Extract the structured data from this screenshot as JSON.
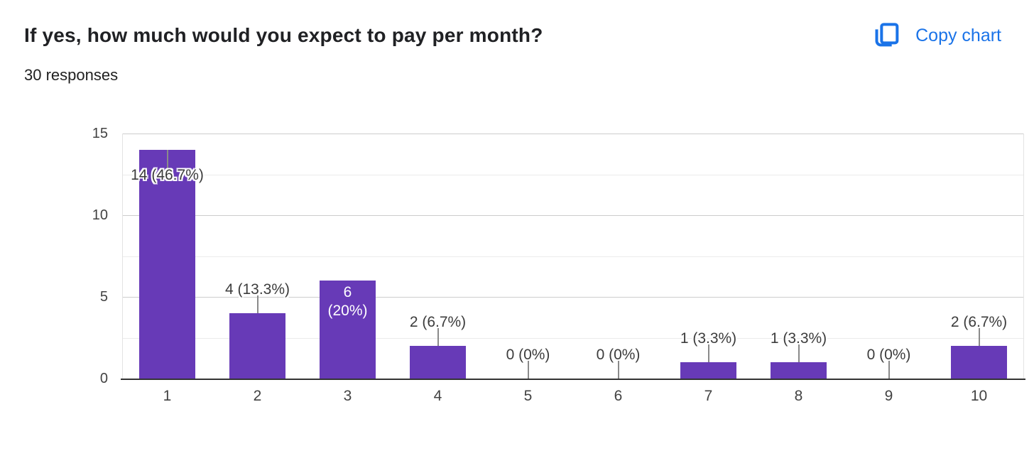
{
  "header": {
    "title": "If yes, how much would you expect to pay per month?",
    "responses_count": "30 responses",
    "copy_chart_label": "Copy chart"
  },
  "chart_data": {
    "type": "bar",
    "title": "If yes, how much would you expect to pay per month?",
    "subtitle": "30 responses",
    "total_responses": 30,
    "categories": [
      "1",
      "2",
      "3",
      "4",
      "5",
      "6",
      "7",
      "8",
      "9",
      "10"
    ],
    "values": [
      14,
      4,
      6,
      2,
      0,
      0,
      1,
      1,
      0,
      2
    ],
    "bar_labels": [
      "14 (46.7%)",
      "4 (13.3%)",
      "6 (20%)",
      "2 (6.7%)",
      "0 (0%)",
      "0 (0%)",
      "1 (3.3%)",
      "1 (3.3%)",
      "0 (0%)",
      "2 (6.7%)"
    ],
    "label_placement": [
      "on-bar",
      "above",
      "inside",
      "above",
      "zero",
      "zero",
      "above",
      "above",
      "zero",
      "above"
    ],
    "xlabel": "",
    "ylabel": "",
    "yticks": [
      0,
      5,
      10,
      15
    ],
    "ylim": [
      0,
      15
    ],
    "grid": true,
    "legend": "none",
    "bar_color": "#673ab7"
  },
  "colors": {
    "bar": "#673ab7",
    "accent_blue": "#1a73e8",
    "title_text": "#202124",
    "axis_text": "#424242",
    "data_label_text": "#3c3c3c",
    "gridline_major": "#cccccc",
    "gridline_minor": "#ebebeb",
    "axis_line": "#333333",
    "leader_line": "#8a8a8a"
  },
  "icons": {
    "copy_chart": "copy-icon"
  }
}
